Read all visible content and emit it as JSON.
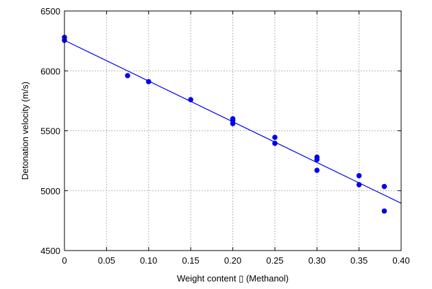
{
  "chart_data": {
    "type": "scatter",
    "title": "",
    "xlabel": "Weight content ▯ (Methanol)",
    "ylabel": "Detonation velocity (m/s)",
    "xlim": [
      0,
      0.4
    ],
    "ylim": [
      4500,
      6500
    ],
    "x_ticks": [
      0,
      0.05,
      0.1,
      0.15,
      0.2,
      0.25,
      0.3,
      0.35,
      0.4
    ],
    "x_tick_labels": [
      "0",
      "0.05",
      "0.10",
      "0.15",
      "0.20",
      "0.25",
      "0.30",
      "0.35",
      "0.40"
    ],
    "y_ticks": [
      4500,
      5000,
      5500,
      6000,
      6500
    ],
    "y_tick_labels": [
      "4500",
      "5000",
      "5500",
      "6000",
      "6500"
    ],
    "grid": true,
    "legend": "none",
    "series": [
      {
        "type": "scatter",
        "color": "#0000ee",
        "points": [
          {
            "x": 0,
            "y": 6280
          },
          {
            "x": 0,
            "y": 6255
          },
          {
            "x": 0.075,
            "y": 5960
          },
          {
            "x": 0.1,
            "y": 5910
          },
          {
            "x": 0.15,
            "y": 5760
          },
          {
            "x": 0.2,
            "y": 5600
          },
          {
            "x": 0.2,
            "y": 5585
          },
          {
            "x": 0.2,
            "y": 5560
          },
          {
            "x": 0.25,
            "y": 5445
          },
          {
            "x": 0.25,
            "y": 5395
          },
          {
            "x": 0.3,
            "y": 5280
          },
          {
            "x": 0.3,
            "y": 5260
          },
          {
            "x": 0.3,
            "y": 5170
          },
          {
            "x": 0.35,
            "y": 5125
          },
          {
            "x": 0.35,
            "y": 5050
          },
          {
            "x": 0.38,
            "y": 5035
          },
          {
            "x": 0.38,
            "y": 4830
          }
        ]
      },
      {
        "type": "line",
        "color": "#0000ee",
        "points": [
          {
            "x": 0,
            "y": 6255
          },
          {
            "x": 0.4,
            "y": 4895
          }
        ]
      }
    ]
  }
}
